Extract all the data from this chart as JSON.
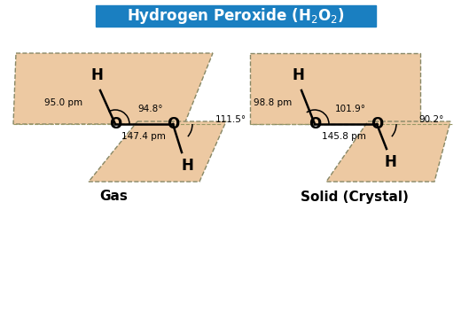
{
  "title_bg": "#1a7fc1",
  "title_fg": "#ffffff",
  "bg_color": "#ffffff",
  "shape_color": "#edc9a2",
  "shape_edge_color": "#888866",
  "gas": {
    "oh_bond": "95.0 pm",
    "oo_bond": "147.4 pm",
    "hoo_angle": "94.8°",
    "dihedral_angle": "111.5°",
    "label": "Gas"
  },
  "solid": {
    "oh_bond": "98.8 pm",
    "oo_bond": "145.8 pm",
    "hoo_angle": "101.9°",
    "dihedral_angle": "90.2°",
    "label": "Solid (Crystal)"
  }
}
